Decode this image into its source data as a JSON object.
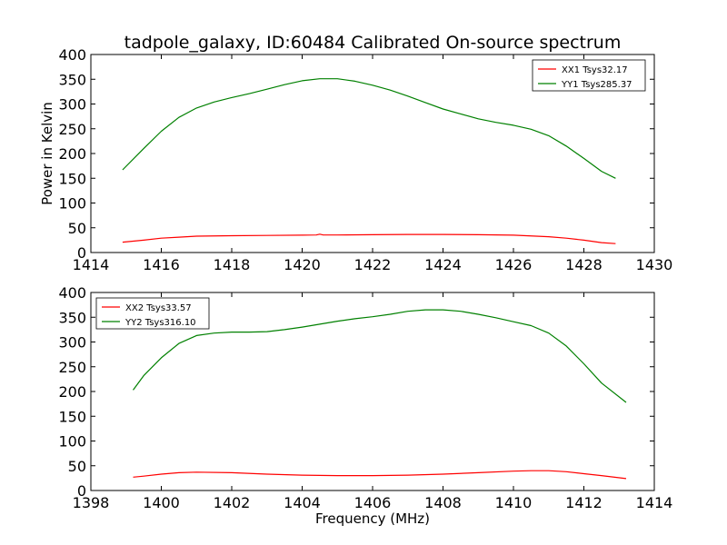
{
  "figure": {
    "title": "tadpole_galaxy, ID:60484 Calibrated On-source spectrum"
  },
  "chart_data": [
    {
      "type": "line",
      "title": "tadpole_galaxy, ID:60484 Calibrated On-source spectrum",
      "xlabel": "",
      "ylabel": "Power in Kelvin",
      "xlim": [
        1414,
        1430
      ],
      "ylim": [
        0,
        400
      ],
      "xticks": [
        "1414",
        "1416",
        "1418",
        "1420",
        "1422",
        "1424",
        "1426",
        "1428",
        "1430"
      ],
      "yticks": [
        "0",
        "50",
        "100",
        "150",
        "200",
        "250",
        "300",
        "350",
        "400"
      ],
      "grid": false,
      "legend_position": "top-right",
      "series": [
        {
          "name": "XX1 Tsys32.17",
          "color": "#ff0000",
          "x": [
            1414.9,
            1415.5,
            1416,
            1416.5,
            1417,
            1418,
            1419,
            1420,
            1420.4,
            1420.5,
            1420.6,
            1421,
            1422,
            1423,
            1424,
            1425,
            1426,
            1427,
            1427.5,
            1428,
            1428.5,
            1428.9
          ],
          "y": [
            21,
            25,
            29,
            31,
            33,
            34,
            34.5,
            35,
            35.5,
            37,
            35.5,
            35.5,
            36,
            36.5,
            36.5,
            36,
            35,
            32,
            29,
            25,
            20,
            18
          ]
        },
        {
          "name": "YY1 Tsys285.37",
          "color": "#008000",
          "x": [
            1414.9,
            1415.5,
            1416,
            1416.5,
            1417,
            1417.5,
            1418,
            1418.5,
            1419,
            1419.5,
            1420,
            1420.5,
            1421,
            1421.5,
            1422,
            1422.5,
            1423,
            1423.5,
            1424,
            1424.5,
            1425,
            1425.5,
            1426,
            1426.5,
            1427,
            1427.5,
            1428,
            1428.5,
            1428.9
          ],
          "y": [
            167,
            210,
            245,
            273,
            292,
            304,
            313,
            321,
            330,
            339,
            347,
            351,
            351,
            346,
            338,
            328,
            316,
            303,
            290,
            280,
            270,
            263,
            257,
            249,
            236,
            215,
            190,
            164,
            150
          ]
        }
      ]
    },
    {
      "type": "line",
      "title": "",
      "xlabel": "Frequency (MHz)",
      "ylabel": "",
      "xlim": [
        1398,
        1414
      ],
      "ylim": [
        0,
        400
      ],
      "xticks": [
        "1398",
        "1400",
        "1402",
        "1404",
        "1406",
        "1408",
        "1410",
        "1412",
        "1414"
      ],
      "yticks": [
        "0",
        "50",
        "100",
        "150",
        "200",
        "250",
        "300",
        "350",
        "400"
      ],
      "grid": false,
      "legend_position": "top-left",
      "series": [
        {
          "name": "XX2 Tsys33.57",
          "color": "#ff0000",
          "x": [
            1399.2,
            1399.5,
            1400,
            1400.5,
            1401,
            1402,
            1403,
            1404,
            1405,
            1406,
            1407,
            1408,
            1409,
            1410,
            1410.5,
            1411,
            1411.5,
            1412,
            1412.5,
            1413.2
          ],
          "y": [
            27,
            29,
            33,
            36,
            37,
            36,
            33,
            31,
            30,
            30,
            31,
            33,
            36,
            39,
            40,
            40,
            38,
            34,
            30,
            24
          ]
        },
        {
          "name": "YY2 Tsys316.10",
          "color": "#008000",
          "x": [
            1399.2,
            1399.5,
            1400,
            1400.5,
            1401,
            1401.5,
            1402,
            1402.5,
            1403,
            1403.5,
            1404,
            1404.5,
            1405,
            1405.5,
            1406,
            1406.5,
            1407,
            1407.5,
            1408,
            1408.5,
            1409,
            1409.5,
            1410,
            1410.5,
            1411,
            1411.5,
            1412,
            1412.5,
            1413.2
          ],
          "y": [
            203,
            232,
            268,
            297,
            313,
            318,
            320,
            320,
            321,
            325,
            330,
            336,
            342,
            347,
            351,
            356,
            362,
            365,
            365,
            362,
            356,
            349,
            341,
            333,
            318,
            292,
            256,
            217,
            178
          ]
        }
      ]
    }
  ]
}
